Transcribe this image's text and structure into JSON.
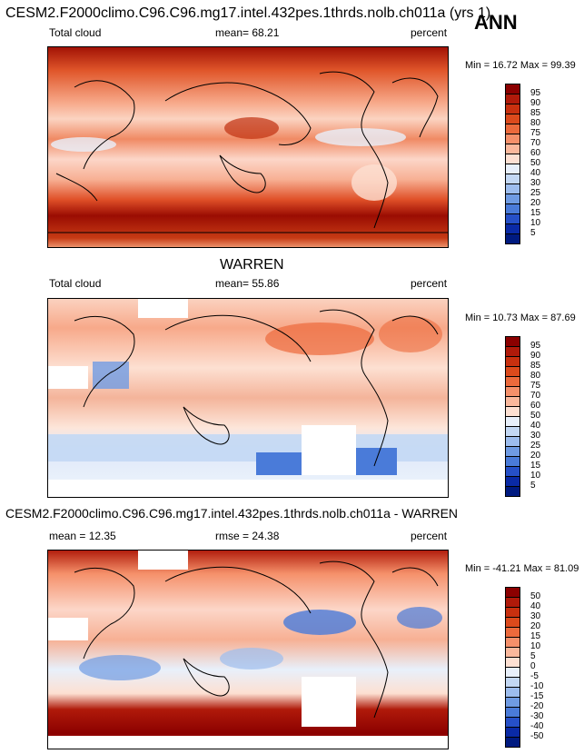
{
  "header": {
    "title": "CESM2.F2000climo.C96.C96.mg17.intel.432pes.1thrds.nolb.ch011a (yrs 1)",
    "season": "ANN"
  },
  "panel1": {
    "variable": "Total cloud",
    "mean": "mean=  68.21",
    "units": "percent",
    "minmax": "Min = 16.72 Max = 99.39"
  },
  "panel2": {
    "title": "WARREN",
    "variable": "Total cloud",
    "mean": "mean=  55.86",
    "units": "percent",
    "minmax": "Min = 10.73 Max = 87.69"
  },
  "panel3": {
    "title": "CESM2.F2000climo.C96.C96.mg17.intel.432pes.1thrds.nolb.ch011a - WARREN",
    "mean": "mean =  12.35",
    "rmse": "rmse =  24.38",
    "units": "percent",
    "minmax": "Min = -41.21 Max = 81.09"
  },
  "colorbar_abs": {
    "labels": [
      "95",
      "90",
      "85",
      "80",
      "75",
      "70",
      "60",
      "50",
      "40",
      "30",
      "25",
      "20",
      "15",
      "10",
      "5"
    ],
    "colors": [
      "#8b0000",
      "#b01a0a",
      "#c8300f",
      "#dc4a1c",
      "#ec6a3c",
      "#f5906a",
      "#fab89c",
      "#fde0d2",
      "#e8f0fb",
      "#c3d8f4",
      "#9dbdee",
      "#6f9be3",
      "#4a7bd9",
      "#2650c8",
      "#0a2aa6",
      "#001a80"
    ]
  },
  "colorbar_diff": {
    "labels": [
      "50",
      "40",
      "30",
      "20",
      "15",
      "10",
      "5",
      "0",
      "-5",
      "-10",
      "-15",
      "-20",
      "-30",
      "-40",
      "-50"
    ],
    "colors": [
      "#8b0000",
      "#b01a0a",
      "#c8300f",
      "#dc4a1c",
      "#ec6a3c",
      "#f5906a",
      "#fab89c",
      "#fde0d2",
      "#e8f0fb",
      "#c3d8f4",
      "#9dbdee",
      "#6f9be3",
      "#4a7bd9",
      "#2650c8",
      "#0a2aa6",
      "#001a80"
    ]
  }
}
